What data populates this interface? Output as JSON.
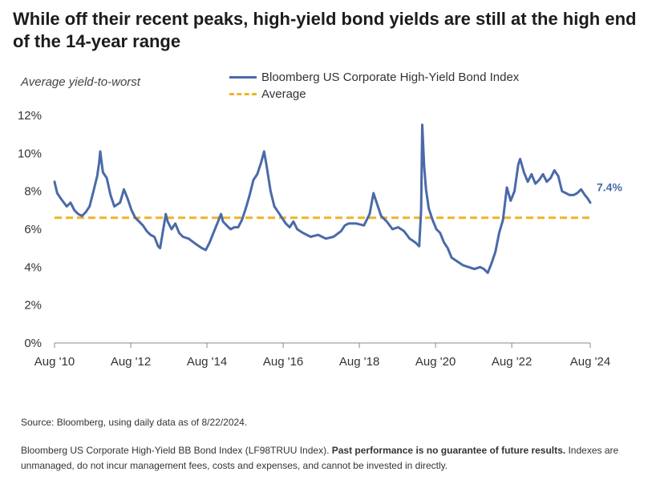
{
  "title": "While off their recent peaks, high-yield bond yields are still at the high end of the 14-year range",
  "ylabel": "Average yield-to-worst",
  "legend": {
    "series": "Bloomberg US Corporate High-Yield Bond Index",
    "average": "Average"
  },
  "end_label": "7.4%",
  "colors": {
    "series": "#4a6aa8",
    "average": "#f0b429",
    "axis": "#888888"
  },
  "footnotes": {
    "source": "Source: Bloomberg, using daily data as of 8/22/2024.",
    "disclaimer_pre": "Bloomberg US Corporate High-Yield BB Bond Index (LF98TRUU Index). ",
    "disclaimer_bold": "Past performance is no guarantee of future results.",
    "disclaimer_post": " Indexes are unmanaged, do not incur management fees, costs and expenses, and cannot be invested in directly."
  },
  "chart_data": {
    "type": "line",
    "ylim": [
      0,
      12
    ],
    "xlim": [
      2010.58,
      2024.64
    ],
    "yticks": [
      "0%",
      "2%",
      "4%",
      "6%",
      "8%",
      "10%",
      "12%"
    ],
    "xticks": [
      {
        "x": 2010.58,
        "label": "Aug '10"
      },
      {
        "x": 2012.58,
        "label": "Aug '12"
      },
      {
        "x": 2014.58,
        "label": "Aug '14"
      },
      {
        "x": 2016.58,
        "label": "Aug '16"
      },
      {
        "x": 2018.58,
        "label": "Aug '18"
      },
      {
        "x": 2020.58,
        "label": "Aug '20"
      },
      {
        "x": 2022.58,
        "label": "Aug '22"
      },
      {
        "x": 2024.64,
        "label": "Aug '24"
      }
    ],
    "average": 6.6,
    "series": [
      {
        "name": "Bloomberg US Corporate High-Yield Bond Index",
        "points": [
          [
            2010.58,
            8.5
          ],
          [
            2010.65,
            7.9
          ],
          [
            2010.75,
            7.6
          ],
          [
            2010.9,
            7.2
          ],
          [
            2011.0,
            7.4
          ],
          [
            2011.1,
            7.0
          ],
          [
            2011.2,
            6.8
          ],
          [
            2011.3,
            6.7
          ],
          [
            2011.4,
            6.9
          ],
          [
            2011.5,
            7.2
          ],
          [
            2011.6,
            8.0
          ],
          [
            2011.7,
            8.8
          ],
          [
            2011.75,
            9.5
          ],
          [
            2011.78,
            10.1
          ],
          [
            2011.85,
            9.0
          ],
          [
            2011.95,
            8.7
          ],
          [
            2012.05,
            7.8
          ],
          [
            2012.15,
            7.2
          ],
          [
            2012.3,
            7.4
          ],
          [
            2012.4,
            8.1
          ],
          [
            2012.5,
            7.6
          ],
          [
            2012.6,
            7.0
          ],
          [
            2012.7,
            6.6
          ],
          [
            2012.8,
            6.4
          ],
          [
            2012.9,
            6.2
          ],
          [
            2013.0,
            5.9
          ],
          [
            2013.1,
            5.7
          ],
          [
            2013.2,
            5.6
          ],
          [
            2013.3,
            5.1
          ],
          [
            2013.35,
            5.0
          ],
          [
            2013.45,
            6.2
          ],
          [
            2013.5,
            6.8
          ],
          [
            2013.55,
            6.4
          ],
          [
            2013.65,
            6.0
          ],
          [
            2013.75,
            6.3
          ],
          [
            2013.85,
            5.8
          ],
          [
            2013.95,
            5.6
          ],
          [
            2014.1,
            5.5
          ],
          [
            2014.3,
            5.2
          ],
          [
            2014.45,
            5.0
          ],
          [
            2014.55,
            4.9
          ],
          [
            2014.65,
            5.3
          ],
          [
            2014.75,
            5.8
          ],
          [
            2014.85,
            6.3
          ],
          [
            2014.95,
            6.8
          ],
          [
            2015.0,
            6.4
          ],
          [
            2015.1,
            6.2
          ],
          [
            2015.2,
            6.0
          ],
          [
            2015.3,
            6.1
          ],
          [
            2015.4,
            6.1
          ],
          [
            2015.5,
            6.5
          ],
          [
            2015.6,
            7.1
          ],
          [
            2015.7,
            7.8
          ],
          [
            2015.8,
            8.6
          ],
          [
            2015.9,
            8.9
          ],
          [
            2016.0,
            9.5
          ],
          [
            2016.08,
            10.1
          ],
          [
            2016.15,
            9.3
          ],
          [
            2016.25,
            8.0
          ],
          [
            2016.35,
            7.2
          ],
          [
            2016.45,
            6.9
          ],
          [
            2016.55,
            6.6
          ],
          [
            2016.65,
            6.3
          ],
          [
            2016.75,
            6.1
          ],
          [
            2016.85,
            6.4
          ],
          [
            2016.95,
            6.0
          ],
          [
            2017.1,
            5.8
          ],
          [
            2017.3,
            5.6
          ],
          [
            2017.5,
            5.7
          ],
          [
            2017.7,
            5.5
          ],
          [
            2017.9,
            5.6
          ],
          [
            2018.1,
            5.9
          ],
          [
            2018.2,
            6.2
          ],
          [
            2018.3,
            6.3
          ],
          [
            2018.5,
            6.3
          ],
          [
            2018.7,
            6.2
          ],
          [
            2018.85,
            6.8
          ],
          [
            2018.95,
            7.9
          ],
          [
            2019.05,
            7.3
          ],
          [
            2019.15,
            6.7
          ],
          [
            2019.3,
            6.4
          ],
          [
            2019.45,
            6.0
          ],
          [
            2019.6,
            6.1
          ],
          [
            2019.75,
            5.9
          ],
          [
            2019.9,
            5.5
          ],
          [
            2020.05,
            5.3
          ],
          [
            2020.15,
            5.1
          ],
          [
            2020.2,
            7.0
          ],
          [
            2020.23,
            11.5
          ],
          [
            2020.28,
            9.3
          ],
          [
            2020.33,
            8.1
          ],
          [
            2020.4,
            7.1
          ],
          [
            2020.5,
            6.5
          ],
          [
            2020.6,
            6.0
          ],
          [
            2020.7,
            5.8
          ],
          [
            2020.8,
            5.3
          ],
          [
            2020.9,
            5.0
          ],
          [
            2021.0,
            4.5
          ],
          [
            2021.15,
            4.3
          ],
          [
            2021.3,
            4.1
          ],
          [
            2021.45,
            4.0
          ],
          [
            2021.6,
            3.9
          ],
          [
            2021.75,
            4.0
          ],
          [
            2021.85,
            3.9
          ],
          [
            2021.95,
            3.7
          ],
          [
            2022.05,
            4.2
          ],
          [
            2022.15,
            4.8
          ],
          [
            2022.25,
            5.8
          ],
          [
            2022.35,
            6.5
          ],
          [
            2022.45,
            8.2
          ],
          [
            2022.55,
            7.5
          ],
          [
            2022.65,
            8.0
          ],
          [
            2022.75,
            9.4
          ],
          [
            2022.8,
            9.7
          ],
          [
            2022.9,
            9.0
          ],
          [
            2023.0,
            8.5
          ],
          [
            2023.1,
            8.9
          ],
          [
            2023.2,
            8.4
          ],
          [
            2023.3,
            8.6
          ],
          [
            2023.4,
            8.9
          ],
          [
            2023.5,
            8.5
          ],
          [
            2023.6,
            8.7
          ],
          [
            2023.7,
            9.1
          ],
          [
            2023.8,
            8.8
          ],
          [
            2023.9,
            8.0
          ],
          [
            2024.0,
            7.9
          ],
          [
            2024.1,
            7.8
          ],
          [
            2024.2,
            7.8
          ],
          [
            2024.3,
            7.9
          ],
          [
            2024.4,
            8.1
          ],
          [
            2024.5,
            7.8
          ],
          [
            2024.58,
            7.6
          ],
          [
            2024.64,
            7.4
          ]
        ]
      }
    ]
  }
}
